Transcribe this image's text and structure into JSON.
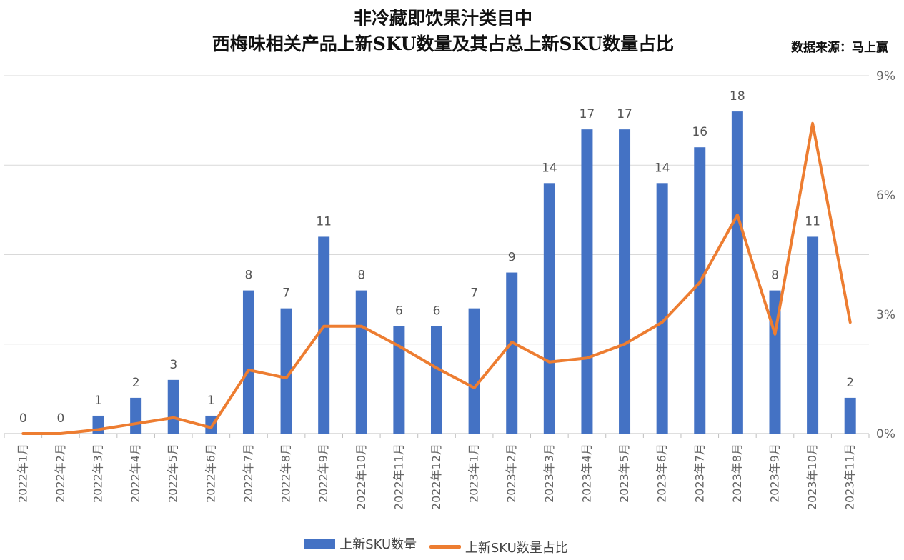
{
  "source_label": "数据来源：马上赢",
  "chart_data": {
    "type": "bar",
    "title": "非冷藏即饮果汁类目中",
    "subtitle": "西梅味相关产品上新SKU数量及其占总上新SKU数量占比",
    "categories": [
      "2022年1月",
      "2022年2月",
      "2022年3月",
      "2022年4月",
      "2022年5月",
      "2022年6月",
      "2022年7月",
      "2022年8月",
      "2022年9月",
      "2022年10月",
      "2022年11月",
      "2022年12月",
      "2023年1月",
      "2023年2月",
      "2023年3月",
      "2023年4月",
      "2023年5月",
      "2023年6月",
      "2023年7月",
      "2023年8月",
      "2023年9月",
      "2023年10月",
      "2023年11月"
    ],
    "series": [
      {
        "name": "上新SKU数量",
        "type": "bar",
        "color": "#4472C4",
        "values": [
          0,
          0,
          1,
          2,
          3,
          1,
          8,
          7,
          11,
          8,
          6,
          6,
          7,
          9,
          14,
          17,
          17,
          14,
          16,
          18,
          8,
          11,
          2
        ]
      },
      {
        "name": "上新SKU数量占比",
        "type": "line",
        "color": "#ED7D31",
        "axis": "right",
        "values": [
          0.0,
          0.0,
          0.1,
          0.25,
          0.4,
          0.15,
          1.6,
          1.4,
          2.7,
          2.7,
          2.2,
          1.65,
          1.15,
          2.3,
          1.8,
          1.9,
          2.25,
          2.8,
          3.8,
          5.5,
          2.5,
          7.8,
          2.8
        ]
      }
    ],
    "y_left_range": [
      0,
      20
    ],
    "y_right_range": [
      0,
      9
    ],
    "y_right_ticks": [
      "0%",
      "3%",
      "6%",
      "9%"
    ],
    "grid": true,
    "legend_position": "bottom"
  }
}
